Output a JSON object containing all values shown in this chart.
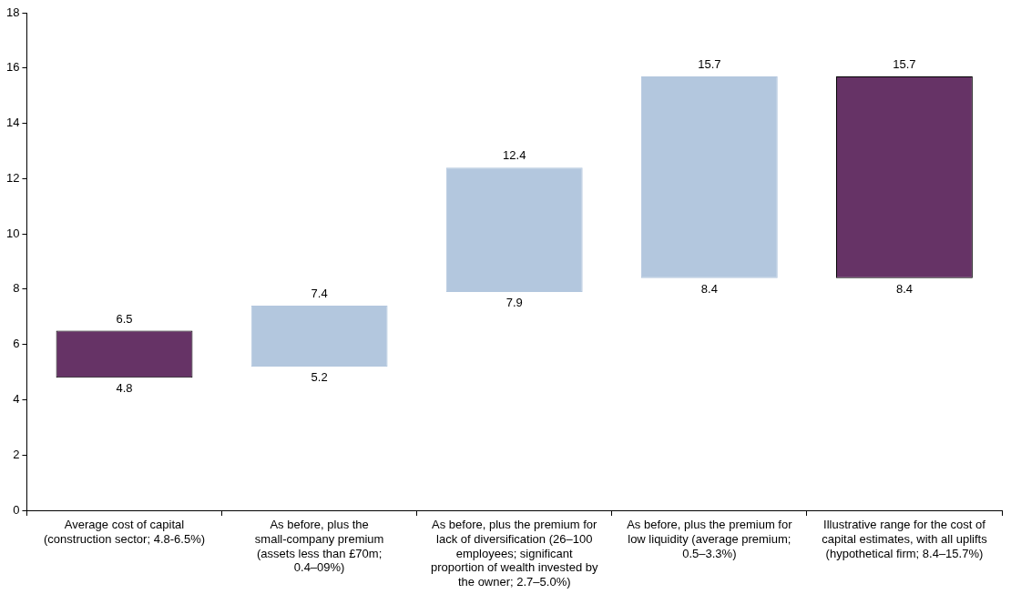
{
  "chart_data": {
    "type": "bar",
    "categories": [
      "Average cost of capital (construction sector; 4.8-6.5%)",
      "As before, plus the small-company premium (assets less than £70m; 0.4–09%)",
      "As before, plus the premium for lack of diversification (26–100 employees; significant proportion of wealth invested by the owner; 2.7–5.0%)",
      "As before, plus the premium for low liquidity (average premium; 0.5–3.3%)",
      "Illustrative range for the cost of capital estimates, with all uplifts (hypothetical firm; 8.4–15.7%)"
    ],
    "base": [
      4.8,
      5.2,
      7.9,
      8.4,
      8.4
    ],
    "values": [
      1.7,
      2.2,
      4.5,
      7.3,
      7.3
    ],
    "colors": [
      "#663366",
      "#b3c7de",
      "#b3c7de",
      "#b3c7de",
      "#663366"
    ],
    "ylim": [
      0,
      18
    ],
    "yticks": [
      0,
      2,
      4,
      6,
      8,
      10,
      12,
      14,
      16,
      18
    ],
    "grid": false,
    "legend": false,
    "annotations": [
      {
        "text": "6.5",
        "x": "Average cost of capital (construction sector; 4.8-6.5%)",
        "y": 6.5
      },
      {
        "text": "4.8",
        "x": "Average cost of capital (construction sector; 4.8-6.5%)",
        "y": 4.8
      },
      {
        "text": "7.4",
        "x": "As before, plus the small-company premium (assets less than £70m; 0.4–09%)",
        "y": 7.4
      },
      {
        "text": "5.2",
        "x": "As before, plus the small-company premium (assets less than £70m; 0.4–09%)",
        "y": 5.2
      },
      {
        "text": "12.4",
        "x": "As before, plus the premium for lack of diversification (26–100 employees; significant proportion of wealth invested by the owner; 2.7–5.0%)",
        "y": 12.4
      },
      {
        "text": "7.9",
        "x": "As before, plus the premium for lack of diversification (26–100 employees; significant proportion of wealth invested by the owner; 2.7–5.0%)",
        "y": 7.9
      },
      {
        "text": "15.7",
        "x": "As before, plus the premium for low liquidity (average premium; 0.5–3.3%)",
        "y": 15.7
      },
      {
        "text": "8.4",
        "x": "As before, plus the premium for low liquidity (average premium; 0.5–3.3%)",
        "y": 8.4
      },
      {
        "text": "15.7",
        "x": "Illustrative range for the cost of capital estimates, with all uplifts (hypothetical firm; 8.4–15.7%)",
        "y": 15.7
      },
      {
        "text": "8.4",
        "x": "Illustrative range for the cost of capital estimates, with all uplifts (hypothetical firm; 8.4–15.7%)",
        "y": 8.4
      }
    ]
  }
}
